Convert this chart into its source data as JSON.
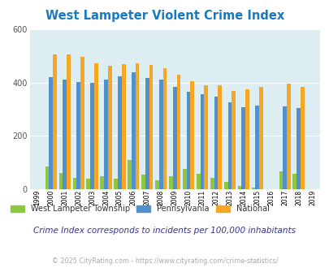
{
  "title": "West Lampeter Violent Crime Index",
  "years": [
    1999,
    2000,
    2001,
    2002,
    2003,
    2004,
    2005,
    2006,
    2007,
    2008,
    2009,
    2010,
    2011,
    2012,
    2013,
    2014,
    2015,
    2016,
    2017,
    2018,
    2019
  ],
  "west_lampeter": [
    0,
    85,
    60,
    42,
    38,
    48,
    40,
    108,
    55,
    33,
    48,
    75,
    57,
    42,
    27,
    10,
    5,
    0,
    65,
    58,
    0
  ],
  "pennsylvania": [
    0,
    422,
    410,
    402,
    400,
    412,
    425,
    440,
    417,
    410,
    385,
    367,
    357,
    348,
    327,
    308,
    315,
    0,
    310,
    303,
    0
  ],
  "national": [
    0,
    507,
    507,
    497,
    472,
    463,
    469,
    474,
    465,
    455,
    430,
    405,
    390,
    390,
    368,
    375,
    384,
    0,
    397,
    384,
    0
  ],
  "color_west_lampeter": "#8dc63f",
  "color_pennsylvania": "#4f90cd",
  "color_national": "#f6a623",
  "fig_bg_color": "#ffffff",
  "plot_bg": "#ddeef2",
  "ylim": [
    0,
    600
  ],
  "yticks": [
    0,
    200,
    400,
    600
  ],
  "subtitle": "Crime Index corresponds to incidents per 100,000 inhabitants",
  "footer": "© 2025 CityRating.com - https://www.cityrating.com/crime-statistics/",
  "grid_color": "#ffffff",
  "title_color": "#1a7abf",
  "subtitle_color": "#333399",
  "footer_color": "#aaaaaa",
  "legend_label_color": "#333333"
}
